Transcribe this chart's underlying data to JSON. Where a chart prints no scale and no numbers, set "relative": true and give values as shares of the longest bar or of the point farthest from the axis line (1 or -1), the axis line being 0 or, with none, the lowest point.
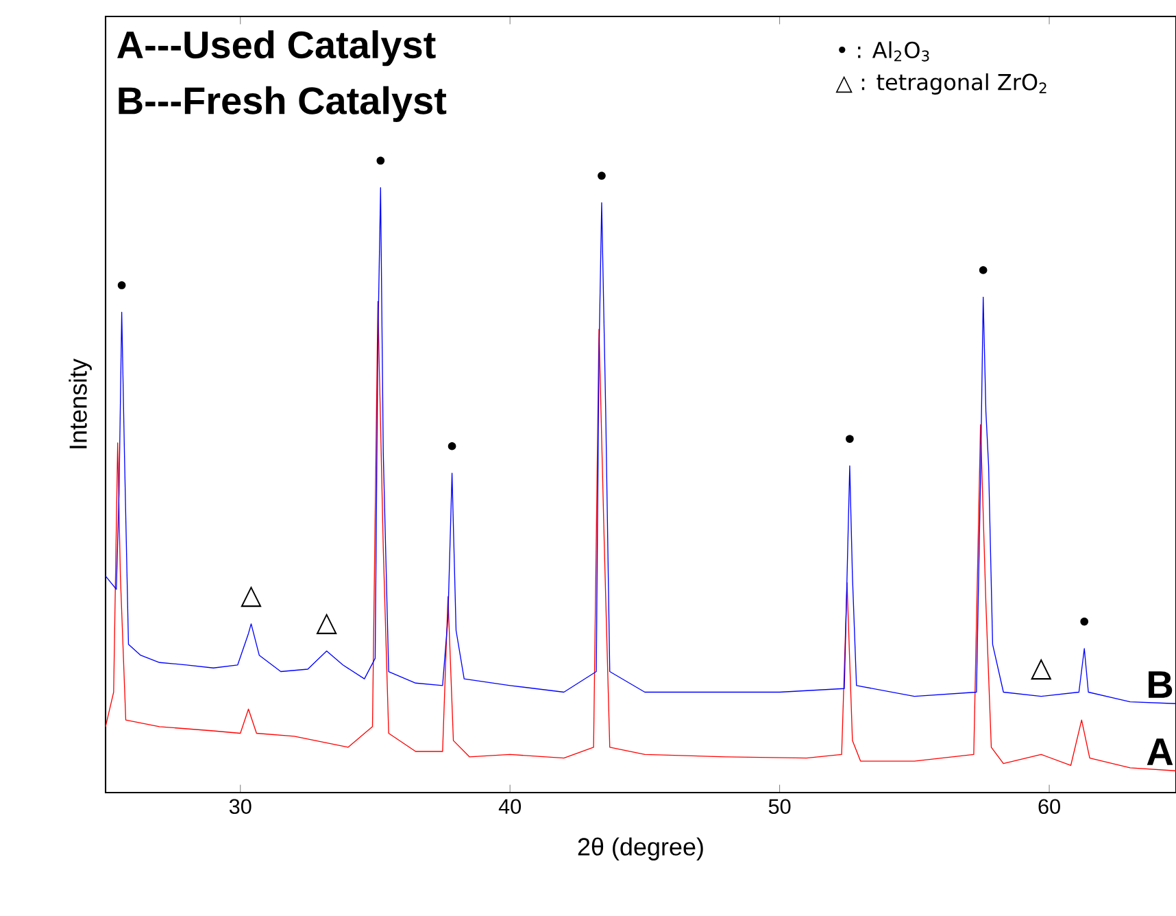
{
  "chart_data": {
    "type": "line",
    "relative": true,
    "xlabel": "2θ (degree)",
    "ylabel": "Intensity",
    "xlim": [
      25,
      64.7
    ],
    "xticks": [
      30,
      40,
      50,
      60
    ],
    "series": [
      {
        "name": "A",
        "color": "#ff0000",
        "x": [
          25.0,
          25.3,
          25.45,
          25.55,
          25.75,
          27,
          29,
          30.0,
          30.3,
          30.6,
          32,
          34,
          34.9,
          35.1,
          35.3,
          35.5,
          36.5,
          37.5,
          37.7,
          37.9,
          38.5,
          40,
          42,
          43.1,
          43.3,
          43.5,
          43.7,
          45,
          48,
          51,
          52.3,
          52.5,
          52.7,
          53,
          55,
          57.2,
          57.45,
          57.65,
          57.85,
          58.3,
          59.7,
          60.8,
          61.2,
          61.5,
          63,
          64.7
        ],
        "values": [
          0.109,
          0.166,
          0.578,
          0.358,
          0.12,
          0.109,
          0.102,
          0.098,
          0.138,
          0.098,
          0.093,
          0.075,
          0.109,
          0.812,
          0.404,
          0.098,
          0.068,
          0.068,
          0.324,
          0.086,
          0.059,
          0.063,
          0.057,
          0.075,
          0.766,
          0.404,
          0.075,
          0.063,
          0.059,
          0.057,
          0.063,
          0.347,
          0.086,
          0.052,
          0.052,
          0.063,
          0.608,
          0.313,
          0.075,
          0.048,
          0.063,
          0.045,
          0.12,
          0.057,
          0.041,
          0.036
        ]
      },
      {
        "name": "B",
        "color": "#0000ff",
        "x": [
          25.0,
          25.2,
          25.4,
          25.5,
          25.6,
          25.7,
          25.85,
          26.3,
          27,
          28,
          29,
          29.9,
          30.3,
          30.4,
          30.7,
          31.5,
          32.5,
          33.2,
          33.8,
          34.6,
          35.0,
          35.1,
          35.2,
          35.3,
          35.5,
          36.5,
          37.5,
          37.7,
          37.85,
          38.0,
          38.3,
          40,
          42,
          43.2,
          43.3,
          43.4,
          43.55,
          43.7,
          45,
          47,
          50,
          52.4,
          52.55,
          52.6,
          52.7,
          52.85,
          55,
          57.3,
          57.45,
          57.55,
          57.65,
          57.75,
          57.9,
          58.3,
          59.7,
          61.1,
          61.3,
          61.45,
          63,
          64.7
        ],
        "values": [
          0.358,
          0.347,
          0.336,
          0.494,
          0.794,
          0.562,
          0.245,
          0.227,
          0.215,
          0.211,
          0.206,
          0.211,
          0.263,
          0.279,
          0.227,
          0.2,
          0.204,
          0.234,
          0.211,
          0.188,
          0.222,
          0.744,
          1,
          0.562,
          0.2,
          0.181,
          0.177,
          0.29,
          0.528,
          0.268,
          0.188,
          0.177,
          0.166,
          0.2,
          0.721,
          0.975,
          0.63,
          0.2,
          0.166,
          0.166,
          0.166,
          0.172,
          0.449,
          0.54,
          0.358,
          0.177,
          0.159,
          0.166,
          0.517,
          0.819,
          0.63,
          0.54,
          0.245,
          0.166,
          0.159,
          0.166,
          0.238,
          0.166,
          0.15,
          0.147
        ]
      }
    ],
    "annotations": [
      "A---Used Catalyst",
      "B---Fresh Catalyst",
      "•  :  Al$_{2}$O$_{3}$",
      "△  :  tetragonal ZrO$_{2}$",
      {
        "text": "•",
        "x": 25.6,
        "y": 0.794
      },
      {
        "text": "•",
        "x": 35.2,
        "y": 1
      },
      {
        "text": "•",
        "x": 37.85,
        "y": 0.528
      },
      {
        "text": "•",
        "x": 43.4,
        "y": 0.975
      },
      {
        "text": "•",
        "x": 52.6,
        "y": 0.54
      },
      {
        "text": "•",
        "x": 57.55,
        "y": 0.819
      },
      {
        "text": "•",
        "x": 61.3,
        "y": 0.238
      },
      {
        "text": "△",
        "x": 30.4,
        "y": 0.279
      },
      {
        "text": "△",
        "x": 33.2,
        "y": 0.234
      },
      {
        "text": "△",
        "x": 59.7,
        "y": 0.159
      }
    ]
  }
}
